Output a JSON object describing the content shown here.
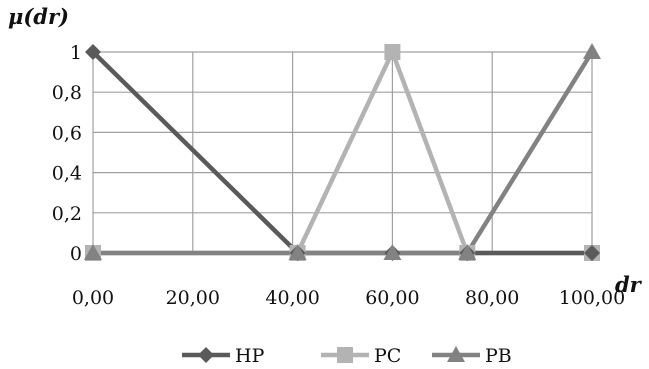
{
  "chart_data": {
    "type": "line",
    "title": "",
    "xlabel": "dr",
    "ylabel": "μ(dr)",
    "xlim": [
      0,
      100
    ],
    "ylim": [
      0,
      1
    ],
    "x_ticks": [
      "0,00",
      "20,00",
      "40,00",
      "60,00",
      "80,00",
      "100,00"
    ],
    "y_ticks": [
      "0",
      "0,2",
      "0,4",
      "0,6",
      "0,8",
      "1"
    ],
    "grid": true,
    "legend_position": "bottom",
    "series": [
      {
        "name": "HP",
        "color": "#5a5a5a",
        "marker": "diamond",
        "points": [
          [
            0,
            1
          ],
          [
            41,
            0
          ],
          [
            60,
            0
          ],
          [
            75,
            0
          ],
          [
            100,
            0
          ]
        ]
      },
      {
        "name": "PC",
        "color": "#b3b3b3",
        "marker": "square",
        "points": [
          [
            0,
            0
          ],
          [
            41,
            0
          ],
          [
            60,
            1
          ],
          [
            75,
            0
          ],
          [
            100,
            0
          ]
        ]
      },
      {
        "name": "PB",
        "color": "#828282",
        "marker": "triangle",
        "points": [
          [
            0,
            0
          ],
          [
            41,
            0
          ],
          [
            60,
            0
          ],
          [
            75,
            0
          ],
          [
            100,
            1
          ]
        ]
      }
    ]
  }
}
